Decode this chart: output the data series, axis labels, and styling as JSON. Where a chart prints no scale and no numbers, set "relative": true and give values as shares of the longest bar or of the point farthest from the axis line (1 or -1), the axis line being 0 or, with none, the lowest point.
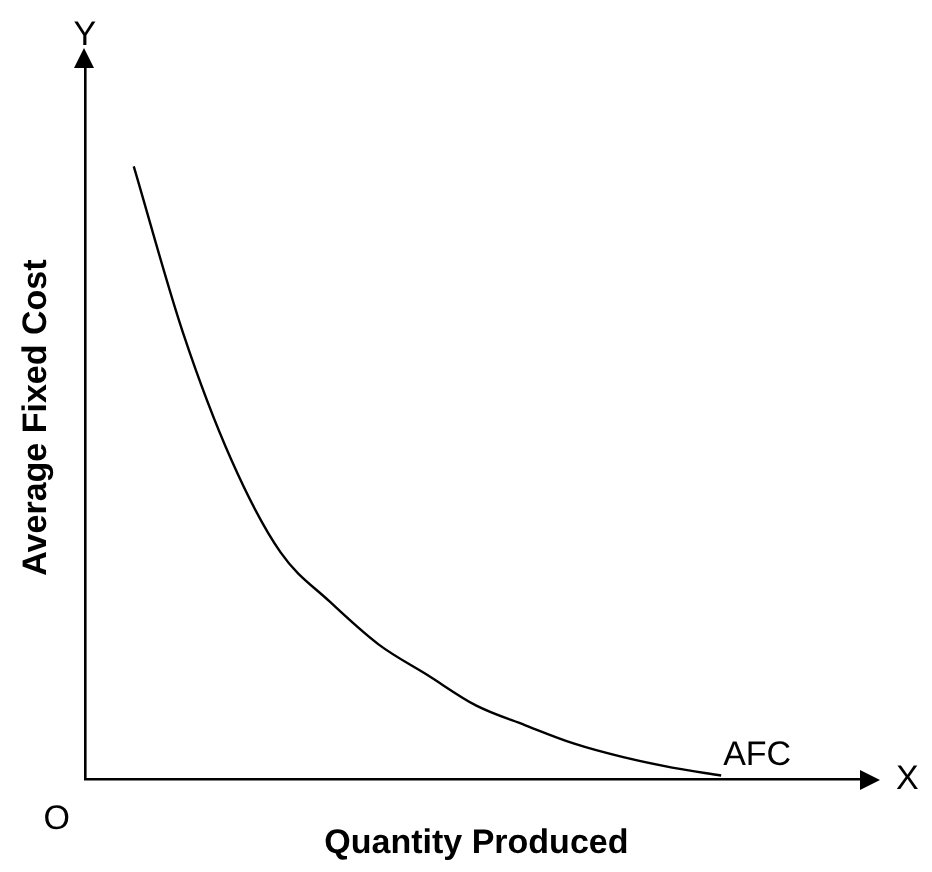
{
  "chart_data": {
    "type": "line",
    "relative": true,
    "xlabel": "Quantity Produced",
    "ylabel": "Average Fixed Cost",
    "categories": [
      null,
      null,
      null,
      null,
      null,
      null,
      null,
      null,
      null,
      null,
      null,
      null,
      null,
      null,
      null,
      null,
      null
    ],
    "series": [
      {
        "color": "#000000",
        "values": [
          null,
          1,
          0.73,
          0.52,
          0.37,
          0.29,
          0.22,
          0.17,
          0.12,
          0.088,
          0.058,
          0.036,
          0.019,
          0.006,
          null,
          null,
          null
        ]
      }
    ],
    "annotations": [
      "AFC",
      "Y",
      "X",
      "O"
    ],
    "marker": "none",
    "legend": false,
    "grid": false
  }
}
